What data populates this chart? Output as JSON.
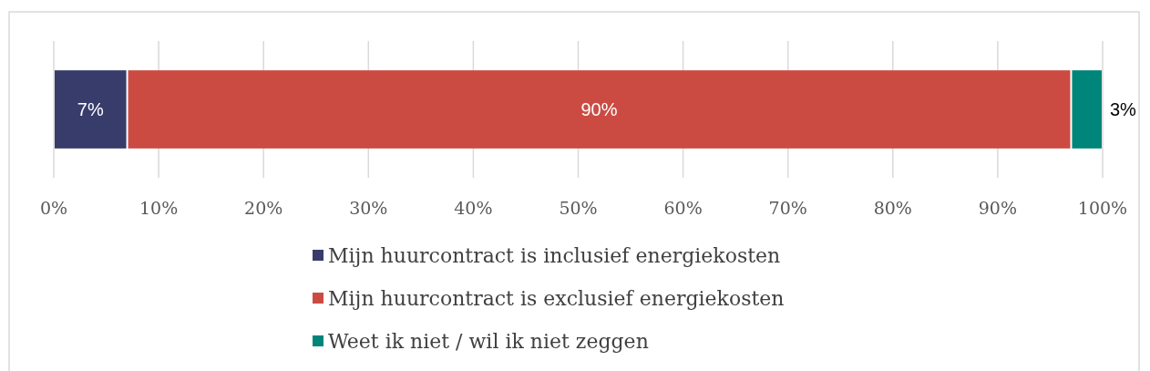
{
  "chart_data": {
    "type": "bar",
    "orientation": "horizontal",
    "stacked": true,
    "categories": [
      null
    ],
    "series": [
      {
        "name": "Mijn huurcontract is inclusief energiekosten",
        "color": "#383c6b",
        "values": [
          7
        ],
        "value_labels": [
          "7%"
        ]
      },
      {
        "name": "Mijn huurcontract is exclusief energiekosten",
        "color": "#cb4b43",
        "values": [
          90
        ],
        "value_labels": [
          "90%"
        ]
      },
      {
        "name": "Weet ik niet / wil ik niet zeggen",
        "color": "#00857a",
        "values": [
          3
        ],
        "value_labels": [
          "3%"
        ]
      }
    ],
    "xlim": [
      0,
      100
    ],
    "xticks": [
      {
        "value": 0,
        "label": "0%"
      },
      {
        "value": 10,
        "label": "10%"
      },
      {
        "value": 20,
        "label": "20%"
      },
      {
        "value": 30,
        "label": "30%"
      },
      {
        "value": 40,
        "label": "40%"
      },
      {
        "value": 50,
        "label": "50%"
      },
      {
        "value": 60,
        "label": "60%"
      },
      {
        "value": 70,
        "label": "70%"
      },
      {
        "value": 80,
        "label": "80%"
      },
      {
        "value": 90,
        "label": "90%"
      },
      {
        "value": 100,
        "label": "100%"
      }
    ],
    "grid": "x",
    "legend": "bottom"
  }
}
